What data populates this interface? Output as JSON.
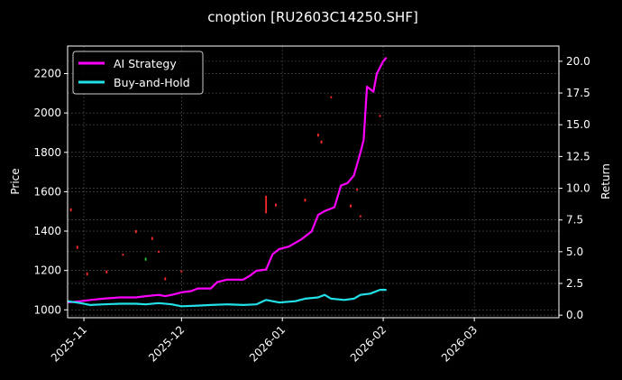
{
  "chart_data": {
    "type": "line",
    "title": "cnoption [RU2603C14250.SHF]",
    "xlabel": "",
    "ylabel": "Price",
    "y2label": "Return",
    "x_range": [
      "2025-10-27",
      "2026-03-27"
    ],
    "x_ticks": [
      "2025-11",
      "2025-12",
      "2026-01",
      "2026-02",
      "2026-03"
    ],
    "x_tick_dates": [
      "2025-11-01",
      "2025-12-01",
      "2026-01-01",
      "2026-02-01",
      "2026-03-01"
    ],
    "ylim": [
      960,
      2340
    ],
    "y_ticks": [
      1000,
      1200,
      1400,
      1600,
      1800,
      2000,
      2200
    ],
    "y2lim": [
      -0.2,
      21.2
    ],
    "y2_ticks": [
      "0.0",
      "2.5",
      "5.0",
      "7.5",
      "10.0",
      "12.5",
      "15.0",
      "17.5",
      "20.0"
    ],
    "grid": true,
    "legend_position": "top-left",
    "colors": {
      "background": "#000000",
      "ai_strategy": "#ff00ff",
      "buy_and_hold": "#22e0e8",
      "candle_up": "#ff2a2a",
      "candle_down": "#22cc22",
      "grid": "#555555"
    },
    "series": [
      {
        "name": "AI Strategy",
        "axis": "right",
        "points": [
          [
            "2025-10-27",
            1.0
          ],
          [
            "2025-10-31",
            1.1
          ],
          [
            "2025-11-03",
            1.2
          ],
          [
            "2025-11-07",
            1.3
          ],
          [
            "2025-11-12",
            1.4
          ],
          [
            "2025-11-17",
            1.4
          ],
          [
            "2025-11-20",
            1.5
          ],
          [
            "2025-11-24",
            1.6
          ],
          [
            "2025-11-26",
            1.5
          ],
          [
            "2025-11-28",
            1.6
          ],
          [
            "2025-12-01",
            1.8
          ],
          [
            "2025-12-04",
            1.9
          ],
          [
            "2025-12-06",
            2.1
          ],
          [
            "2025-12-10",
            2.1
          ],
          [
            "2025-12-12",
            2.6
          ],
          [
            "2025-12-15",
            2.8
          ],
          [
            "2025-12-18",
            2.8
          ],
          [
            "2025-12-20",
            2.8
          ],
          [
            "2025-12-22",
            3.1
          ],
          [
            "2025-12-24",
            3.5
          ],
          [
            "2025-12-27",
            3.6
          ],
          [
            "2025-12-29",
            4.8
          ],
          [
            "2025-12-31",
            5.2
          ],
          [
            "2026-01-03",
            5.4
          ],
          [
            "2026-01-07",
            6.0
          ],
          [
            "2026-01-10",
            6.6
          ],
          [
            "2026-01-12",
            7.9
          ],
          [
            "2026-01-14",
            8.2
          ],
          [
            "2026-01-17",
            8.5
          ],
          [
            "2026-01-19",
            10.2
          ],
          [
            "2026-01-21",
            10.4
          ],
          [
            "2026-01-23",
            11.0
          ],
          [
            "2026-01-25",
            12.8
          ],
          [
            "2026-01-26",
            13.8
          ],
          [
            "2026-01-27",
            18.0
          ],
          [
            "2026-01-29",
            17.6
          ],
          [
            "2026-01-30",
            19.0
          ],
          [
            "2026-02-01",
            20.0
          ],
          [
            "2026-02-02",
            20.3
          ]
        ]
      },
      {
        "name": "Buy-and-Hold",
        "axis": "right",
        "points": [
          [
            "2025-10-27",
            1.1
          ],
          [
            "2025-10-31",
            0.95
          ],
          [
            "2025-11-03",
            0.8
          ],
          [
            "2025-11-07",
            0.85
          ],
          [
            "2025-11-12",
            0.9
          ],
          [
            "2025-11-17",
            0.9
          ],
          [
            "2025-11-20",
            0.85
          ],
          [
            "2025-11-24",
            0.95
          ],
          [
            "2025-11-28",
            0.85
          ],
          [
            "2025-12-01",
            0.7
          ],
          [
            "2025-12-06",
            0.75
          ],
          [
            "2025-12-10",
            0.8
          ],
          [
            "2025-12-15",
            0.85
          ],
          [
            "2025-12-20",
            0.8
          ],
          [
            "2025-12-24",
            0.85
          ],
          [
            "2025-12-27",
            1.2
          ],
          [
            "2025-12-31",
            1.0
          ],
          [
            "2026-01-05",
            1.1
          ],
          [
            "2026-01-08",
            1.3
          ],
          [
            "2026-01-12",
            1.4
          ],
          [
            "2026-01-14",
            1.6
          ],
          [
            "2026-01-16",
            1.3
          ],
          [
            "2026-01-20",
            1.2
          ],
          [
            "2026-01-23",
            1.3
          ],
          [
            "2026-01-25",
            1.6
          ],
          [
            "2026-01-28",
            1.7
          ],
          [
            "2026-01-31",
            2.0
          ],
          [
            "2026-02-02",
            2.0
          ]
        ]
      }
    ],
    "price_marks": [
      {
        "date": "2025-10-28",
        "low": 1500,
        "high": 1515,
        "dir": "up"
      },
      {
        "date": "2025-10-30",
        "low": 1310,
        "high": 1325,
        "dir": "up"
      },
      {
        "date": "2025-11-02",
        "low": 1175,
        "high": 1190,
        "dir": "up"
      },
      {
        "date": "2025-11-08",
        "low": 1185,
        "high": 1200,
        "dir": "up"
      },
      {
        "date": "2025-11-13",
        "low": 1275,
        "high": 1285,
        "dir": "up"
      },
      {
        "date": "2025-11-17",
        "low": 1390,
        "high": 1405,
        "dir": "up"
      },
      {
        "date": "2025-11-20",
        "low": 1250,
        "high": 1265,
        "dir": "down"
      },
      {
        "date": "2025-11-22",
        "low": 1355,
        "high": 1370,
        "dir": "up"
      },
      {
        "date": "2025-11-24",
        "low": 1290,
        "high": 1300,
        "dir": "up"
      },
      {
        "date": "2025-11-26",
        "low": 1150,
        "high": 1165,
        "dir": "up"
      },
      {
        "date": "2025-12-01",
        "low": 1190,
        "high": 1200,
        "dir": "up"
      },
      {
        "date": "2025-12-27",
        "low": 1490,
        "high": 1580,
        "dir": "up"
      },
      {
        "date": "2025-12-30",
        "low": 1525,
        "high": 1540,
        "dir": "up"
      },
      {
        "date": "2026-01-08",
        "low": 1550,
        "high": 1565,
        "dir": "up"
      },
      {
        "date": "2026-01-12",
        "low": 1880,
        "high": 1895,
        "dir": "up"
      },
      {
        "date": "2026-01-13",
        "low": 1845,
        "high": 1860,
        "dir": "up"
      },
      {
        "date": "2026-01-16",
        "low": 2075,
        "high": 2085,
        "dir": "up"
      },
      {
        "date": "2026-01-22",
        "low": 1520,
        "high": 1535,
        "dir": "up"
      },
      {
        "date": "2026-01-24",
        "low": 1605,
        "high": 1615,
        "dir": "up"
      },
      {
        "date": "2026-01-25",
        "low": 1470,
        "high": 1480,
        "dir": "up"
      },
      {
        "date": "2026-01-31",
        "low": 1980,
        "high": 1990,
        "dir": "up"
      }
    ]
  }
}
